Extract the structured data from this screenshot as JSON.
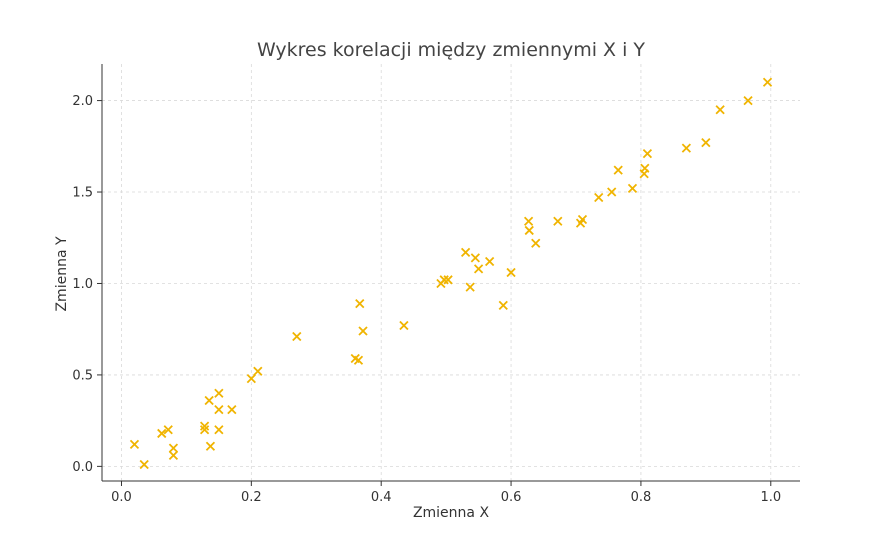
{
  "chart_data": {
    "type": "scatter",
    "title": "Wykres korelacji między zmiennymi X i Y",
    "xlabel": "Zmienna X",
    "ylabel": "Zmienna Y",
    "xlim": [
      -0.03,
      1.045
    ],
    "ylim": [
      -0.08,
      2.2
    ],
    "xticks": [
      0.0,
      0.2,
      0.4,
      0.6,
      0.8,
      1.0
    ],
    "xtick_labels": [
      "0.0",
      "0.2",
      "0.4",
      "0.6",
      "0.8",
      "1.0"
    ],
    "yticks": [
      0.0,
      0.5,
      1.0,
      1.5,
      2.0
    ],
    "ytick_labels": [
      "0.0",
      "0.5",
      "1.0",
      "1.5",
      "2.0"
    ],
    "grid": true,
    "marker": "x",
    "color": "#f0b400",
    "series": [
      {
        "points": [
          [
            0.02,
            0.12
          ],
          [
            0.035,
            0.01
          ],
          [
            0.062,
            0.18
          ],
          [
            0.072,
            0.2
          ],
          [
            0.08,
            0.1
          ],
          [
            0.08,
            0.06
          ],
          [
            0.128,
            0.22
          ],
          [
            0.128,
            0.2
          ],
          [
            0.135,
            0.36
          ],
          [
            0.137,
            0.11
          ],
          [
            0.15,
            0.4
          ],
          [
            0.15,
            0.31
          ],
          [
            0.15,
            0.2
          ],
          [
            0.17,
            0.31
          ],
          [
            0.2,
            0.48
          ],
          [
            0.21,
            0.52
          ],
          [
            0.27,
            0.71
          ],
          [
            0.36,
            0.59
          ],
          [
            0.365,
            0.58
          ],
          [
            0.367,
            0.89
          ],
          [
            0.372,
            0.74
          ],
          [
            0.435,
            0.77
          ],
          [
            0.492,
            1.0
          ],
          [
            0.497,
            1.02
          ],
          [
            0.503,
            1.02
          ],
          [
            0.53,
            1.17
          ],
          [
            0.537,
            0.98
          ],
          [
            0.545,
            1.14
          ],
          [
            0.55,
            1.08
          ],
          [
            0.567,
            1.12
          ],
          [
            0.588,
            0.88
          ],
          [
            0.6,
            1.06
          ],
          [
            0.627,
            1.34
          ],
          [
            0.628,
            1.29
          ],
          [
            0.638,
            1.22
          ],
          [
            0.672,
            1.34
          ],
          [
            0.707,
            1.33
          ],
          [
            0.71,
            1.35
          ],
          [
            0.735,
            1.47
          ],
          [
            0.755,
            1.5
          ],
          [
            0.765,
            1.62
          ],
          [
            0.787,
            1.52
          ],
          [
            0.805,
            1.6
          ],
          [
            0.806,
            1.63
          ],
          [
            0.81,
            1.71
          ],
          [
            0.87,
            1.74
          ],
          [
            0.9,
            1.77
          ],
          [
            0.922,
            1.95
          ],
          [
            0.965,
            2.0
          ],
          [
            0.995,
            2.1
          ]
        ]
      }
    ]
  }
}
